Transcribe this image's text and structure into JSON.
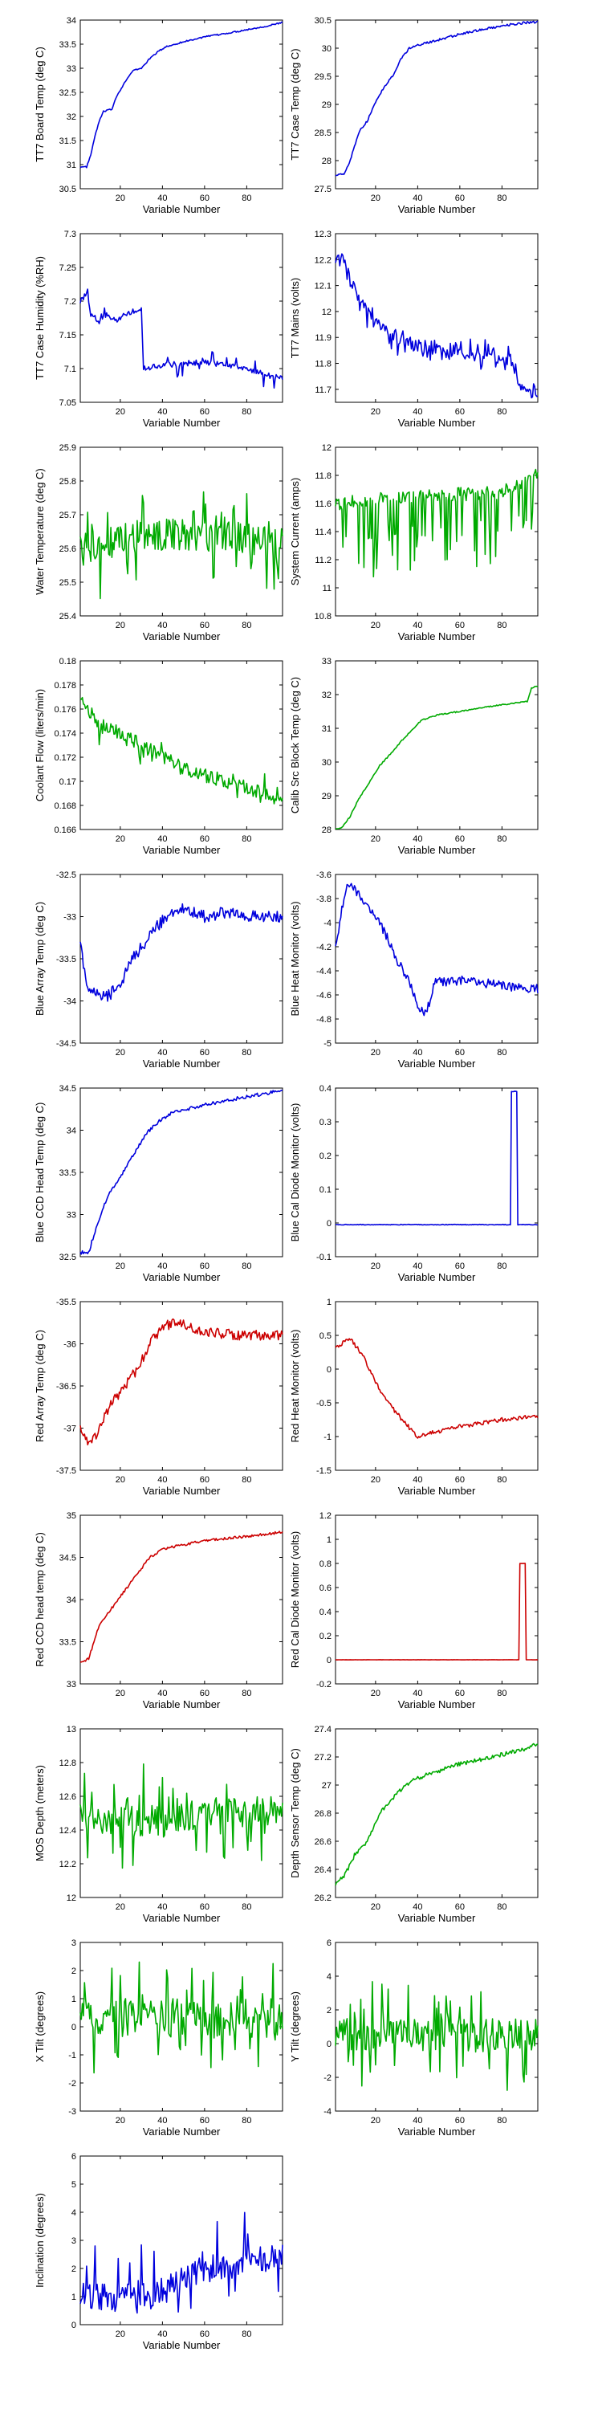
{
  "figure": {
    "xlabel_text": "Variable Number",
    "x_ticks": [
      20,
      40,
      60,
      80
    ]
  },
  "chart_data": [
    {
      "type": "line",
      "ylabel": "TT7 Board Temp (deg C)",
      "color": "#0000dd",
      "xlim": [
        1,
        97
      ],
      "ylim": [
        30.5,
        34
      ],
      "yticks": [
        "30.5",
        "31",
        "31.5",
        "32",
        "32.5",
        "33",
        "33.5",
        "34"
      ],
      "anchors": [
        [
          1,
          30.95
        ],
        [
          4,
          30.95
        ],
        [
          6,
          31.2
        ],
        [
          8,
          31.6
        ],
        [
          10,
          31.9
        ],
        [
          12,
          32.1
        ],
        [
          16,
          32.15
        ],
        [
          18,
          32.4
        ],
        [
          22,
          32.7
        ],
        [
          26,
          32.95
        ],
        [
          30,
          33.0
        ],
        [
          34,
          33.2
        ],
        [
          38,
          33.35
        ],
        [
          42,
          33.45
        ],
        [
          50,
          33.55
        ],
        [
          60,
          33.65
        ],
        [
          70,
          33.72
        ],
        [
          80,
          33.8
        ],
        [
          90,
          33.88
        ],
        [
          97,
          33.95
        ]
      ],
      "noise": 0.015
    },
    {
      "type": "line",
      "ylabel": "TT7 Case Temp (deg C)",
      "color": "#0000dd",
      "xlim": [
        1,
        97
      ],
      "ylim": [
        27.5,
        30.5
      ],
      "yticks": [
        "27.5",
        "28",
        "28.5",
        "29",
        "29.5",
        "30",
        "30.5"
      ],
      "anchors": [
        [
          1,
          27.75
        ],
        [
          5,
          27.75
        ],
        [
          8,
          28.0
        ],
        [
          12,
          28.5
        ],
        [
          16,
          28.7
        ],
        [
          20,
          29.05
        ],
        [
          24,
          29.3
        ],
        [
          28,
          29.5
        ],
        [
          32,
          29.8
        ],
        [
          36,
          30.0
        ],
        [
          40,
          30.05
        ],
        [
          50,
          30.15
        ],
        [
          60,
          30.25
        ],
        [
          70,
          30.33
        ],
        [
          80,
          30.4
        ],
        [
          90,
          30.45
        ],
        [
          97,
          30.47
        ]
      ],
      "noise": 0.02
    },
    {
      "type": "line",
      "ylabel": "TT7 Case Humidity (%RH)",
      "color": "#0000dd",
      "xlim": [
        1,
        97
      ],
      "ylim": [
        7.05,
        7.3
      ],
      "yticks": [
        "7.05",
        "7.1",
        "7.15",
        "7.2",
        "7.25",
        "7.3"
      ],
      "anchors": [
        [
          1,
          7.2
        ],
        [
          4,
          7.21
        ],
        [
          6,
          7.18
        ],
        [
          10,
          7.17
        ],
        [
          14,
          7.18
        ],
        [
          18,
          7.17
        ],
        [
          22,
          7.18
        ],
        [
          30,
          7.19
        ],
        [
          31,
          7.1
        ],
        [
          40,
          7.105
        ],
        [
          60,
          7.11
        ],
        [
          80,
          7.1
        ],
        [
          90,
          7.09
        ],
        [
          97,
          7.085
        ]
      ],
      "noise": 0.004,
      "spikes": 0.12,
      "spike_amp": 0.02
    },
    {
      "type": "line",
      "ylabel": "TT7 Mains  (volts)",
      "color": "#0000dd",
      "xlim": [
        1,
        97
      ],
      "ylim": [
        11.65,
        12.3
      ],
      "yticks": [
        "11.7",
        "11.8",
        "11.9",
        "12",
        "12.1",
        "12.2",
        "12.3"
      ],
      "anchors": [
        [
          1,
          12.2
        ],
        [
          4,
          12.22
        ],
        [
          6,
          12.18
        ],
        [
          8,
          12.12
        ],
        [
          12,
          12.06
        ],
        [
          16,
          12.0
        ],
        [
          20,
          11.96
        ],
        [
          26,
          11.92
        ],
        [
          34,
          11.88
        ],
        [
          44,
          11.86
        ],
        [
          60,
          11.84
        ],
        [
          75,
          11.82
        ],
        [
          85,
          11.81
        ],
        [
          88,
          11.72
        ],
        [
          92,
          11.7
        ],
        [
          97,
          11.68
        ]
      ],
      "noise": 0.02,
      "spikes": 0.25,
      "spike_amp": 0.05
    },
    {
      "type": "line",
      "ylabel": "Water Temperature (deg C)",
      "color": "#00aa00",
      "xlim": [
        1,
        97
      ],
      "ylim": [
        25.4,
        25.9
      ],
      "yticks": [
        "25.4",
        "25.5",
        "25.6",
        "25.7",
        "25.8",
        "25.9"
      ],
      "anchors": [
        [
          1,
          25.6
        ],
        [
          30,
          25.64
        ],
        [
          60,
          25.64
        ],
        [
          97,
          25.62
        ]
      ],
      "noise": 0.05,
      "spikes": 0.2,
      "spike_amp": 0.12
    },
    {
      "type": "line",
      "ylabel": "System Current (amps)",
      "color": "#00aa00",
      "xlim": [
        1,
        97
      ],
      "ylim": [
        10.8,
        12
      ],
      "yticks": [
        "10.8",
        "11",
        "11.2",
        "11.4",
        "11.6",
        "11.8",
        "12"
      ],
      "anchors": [
        [
          1,
          11.6
        ],
        [
          40,
          11.65
        ],
        [
          80,
          11.68
        ],
        [
          97,
          11.8
        ]
      ],
      "noise": 0.05,
      "spikes": 0.28,
      "spike_amp": -0.5
    },
    {
      "type": "line",
      "ylabel": "Coolant Flow (liters/min)",
      "color": "#00aa00",
      "xlim": [
        1,
        97
      ],
      "ylim": [
        0.166,
        0.18
      ],
      "yticks": [
        "0.166",
        "0.168",
        "0.17",
        "0.172",
        "0.174",
        "0.176",
        "0.178",
        "0.18"
      ],
      "anchors": [
        [
          1,
          0.177
        ],
        [
          5,
          0.176
        ],
        [
          10,
          0.1745
        ],
        [
          20,
          0.174
        ],
        [
          30,
          0.173
        ],
        [
          40,
          0.172
        ],
        [
          50,
          0.171
        ],
        [
          60,
          0.1705
        ],
        [
          70,
          0.17
        ],
        [
          80,
          0.1695
        ],
        [
          90,
          0.169
        ],
        [
          97,
          0.168
        ]
      ],
      "noise": 0.0006,
      "spikes": 0.15,
      "spike_amp": 0.0012
    },
    {
      "type": "line",
      "ylabel": "Calib Src Block Temp (deg C)",
      "color": "#00aa00",
      "xlim": [
        1,
        97
      ],
      "ylim": [
        28,
        33
      ],
      "yticks": [
        "28",
        "29",
        "30",
        "31",
        "32",
        "33"
      ],
      "anchors": [
        [
          1,
          28.0
        ],
        [
          4,
          28.05
        ],
        [
          8,
          28.4
        ],
        [
          12,
          28.9
        ],
        [
          16,
          29.3
        ],
        [
          22,
          29.9
        ],
        [
          28,
          30.3
        ],
        [
          32,
          30.6
        ],
        [
          38,
          31.0
        ],
        [
          42,
          31.25
        ],
        [
          50,
          31.4
        ],
        [
          60,
          31.5
        ],
        [
          70,
          31.6
        ],
        [
          80,
          31.7
        ],
        [
          92,
          31.8
        ],
        [
          94,
          32.2
        ],
        [
          97,
          32.25
        ]
      ],
      "noise": 0.02
    },
    {
      "type": "line",
      "ylabel": "Blue Array Temp (deg C)",
      "color": "#0000dd",
      "xlim": [
        1,
        97
      ],
      "ylim": [
        -34.5,
        -32.5
      ],
      "yticks": [
        "-34.5",
        "-34",
        "-33.5",
        "-33",
        "-32.5"
      ],
      "anchors": [
        [
          1,
          -33.3
        ],
        [
          4,
          -33.8
        ],
        [
          8,
          -33.9
        ],
        [
          14,
          -33.95
        ],
        [
          20,
          -33.8
        ],
        [
          26,
          -33.5
        ],
        [
          32,
          -33.3
        ],
        [
          38,
          -33.1
        ],
        [
          44,
          -32.95
        ],
        [
          50,
          -32.9
        ],
        [
          60,
          -33.0
        ],
        [
          70,
          -32.95
        ],
        [
          80,
          -33.0
        ],
        [
          97,
          -33.0
        ]
      ],
      "noise": 0.07
    },
    {
      "type": "line",
      "ylabel": "Blue Heat Monitor (volts)",
      "color": "#0000dd",
      "xlim": [
        1,
        97
      ],
      "ylim": [
        -5,
        -3.6
      ],
      "yticks": [
        "-5",
        "-4.8",
        "-4.6",
        "-4.4",
        "-4.2",
        "-4",
        "-3.8",
        "-3.6"
      ],
      "anchors": [
        [
          1,
          -4.2
        ],
        [
          3,
          -4.0
        ],
        [
          6,
          -3.7
        ],
        [
          10,
          -3.72
        ],
        [
          15,
          -3.85
        ],
        [
          20,
          -3.95
        ],
        [
          25,
          -4.1
        ],
        [
          30,
          -4.3
        ],
        [
          36,
          -4.5
        ],
        [
          40,
          -4.7
        ],
        [
          44,
          -4.75
        ],
        [
          48,
          -4.5
        ],
        [
          60,
          -4.48
        ],
        [
          80,
          -4.52
        ],
        [
          97,
          -4.55
        ]
      ],
      "noise": 0.04
    },
    {
      "type": "line",
      "ylabel": "Blue CCD Head Temp (deg C)",
      "color": "#0000dd",
      "xlim": [
        1,
        97
      ],
      "ylim": [
        32.5,
        34.5
      ],
      "yticks": [
        "32.5",
        "33",
        "33.5",
        "34",
        "34.5"
      ],
      "anchors": [
        [
          1,
          32.55
        ],
        [
          5,
          32.55
        ],
        [
          8,
          32.8
        ],
        [
          12,
          33.1
        ],
        [
          16,
          33.3
        ],
        [
          20,
          33.45
        ],
        [
          26,
          33.7
        ],
        [
          32,
          33.95
        ],
        [
          38,
          34.1
        ],
        [
          44,
          34.2
        ],
        [
          60,
          34.3
        ],
        [
          80,
          34.4
        ],
        [
          97,
          34.47
        ]
      ],
      "noise": 0.02
    },
    {
      "type": "line",
      "ylabel": "Blue Cal Diode Monitor (volts)",
      "color": "#0000dd",
      "xlim": [
        1,
        97
      ],
      "ylim": [
        -0.1,
        0.4
      ],
      "yticks": [
        "-0.1",
        "0",
        "0.1",
        "0.2",
        "0.3",
        "0.4"
      ],
      "anchors": [
        [
          1,
          -0.005
        ],
        [
          84,
          -0.005
        ],
        [
          85,
          0.39
        ],
        [
          87,
          0.39
        ],
        [
          88,
          -0.005
        ],
        [
          97,
          -0.005
        ]
      ],
      "noise": 0.001,
      "step": true
    },
    {
      "type": "line",
      "ylabel": "Red Array Temp (deg C)",
      "color": "#cc0000",
      "xlim": [
        1,
        97
      ],
      "ylim": [
        -37.5,
        -35.5
      ],
      "yticks": [
        "-37.5",
        "-37",
        "-36.5",
        "-36",
        "-35.5"
      ],
      "anchors": [
        [
          1,
          -37.0
        ],
        [
          6,
          -37.2
        ],
        [
          10,
          -37.0
        ],
        [
          16,
          -36.7
        ],
        [
          22,
          -36.5
        ],
        [
          28,
          -36.3
        ],
        [
          34,
          -36.0
        ],
        [
          40,
          -35.8
        ],
        [
          46,
          -35.75
        ],
        [
          60,
          -35.85
        ],
        [
          75,
          -35.9
        ],
        [
          97,
          -35.9
        ]
      ],
      "noise": 0.06
    },
    {
      "type": "line",
      "ylabel": "Red Heat Monitor (volts)",
      "color": "#cc0000",
      "xlim": [
        1,
        97
      ],
      "ylim": [
        -1.5,
        1
      ],
      "yticks": [
        "-1.5",
        "-1",
        "-0.5",
        "0",
        "0.5",
        "1"
      ],
      "anchors": [
        [
          1,
          0.3
        ],
        [
          5,
          0.4
        ],
        [
          8,
          0.45
        ],
        [
          14,
          0.2
        ],
        [
          20,
          -0.2
        ],
        [
          26,
          -0.5
        ],
        [
          34,
          -0.8
        ],
        [
          40,
          -1.0
        ],
        [
          46,
          -0.95
        ],
        [
          60,
          -0.85
        ],
        [
          80,
          -0.75
        ],
        [
          97,
          -0.7
        ]
      ],
      "noise": 0.03
    },
    {
      "type": "line",
      "ylabel": "Red CCD head temp (deg C)",
      "color": "#cc0000",
      "xlim": [
        1,
        97
      ],
      "ylim": [
        33,
        35
      ],
      "yticks": [
        "33",
        "33.5",
        "34",
        "34.5",
        "35"
      ],
      "anchors": [
        [
          1,
          33.25
        ],
        [
          5,
          33.3
        ],
        [
          10,
          33.7
        ],
        [
          16,
          33.9
        ],
        [
          22,
          34.1
        ],
        [
          28,
          34.3
        ],
        [
          34,
          34.5
        ],
        [
          40,
          34.6
        ],
        [
          50,
          34.65
        ],
        [
          60,
          34.7
        ],
        [
          80,
          34.75
        ],
        [
          97,
          34.8
        ]
      ],
      "noise": 0.015
    },
    {
      "type": "line",
      "ylabel": "Red Cal Diode Monitor (volts)",
      "color": "#cc0000",
      "xlim": [
        1,
        97
      ],
      "ylim": [
        -0.2,
        1.2
      ],
      "yticks": [
        "-0.2",
        "0",
        "0.2",
        "0.4",
        "0.6",
        "0.8",
        "1",
        "1.2"
      ],
      "anchors": [
        [
          1,
          0.0
        ],
        [
          88,
          0.0
        ],
        [
          89,
          0.8
        ],
        [
          91,
          0.8
        ],
        [
          92,
          0.0
        ],
        [
          97,
          0.0
        ]
      ],
      "noise": 0.001,
      "step": true
    },
    {
      "type": "line",
      "ylabel": "MOS Depth  (meters)",
      "color": "#00aa00",
      "xlim": [
        1,
        97
      ],
      "ylim": [
        12,
        13
      ],
      "yticks": [
        "12",
        "12.2",
        "12.4",
        "12.6",
        "12.8",
        "13"
      ],
      "anchors": [
        [
          1,
          12.45
        ],
        [
          40,
          12.45
        ],
        [
          70,
          12.5
        ],
        [
          97,
          12.5
        ]
      ],
      "noise": 0.1,
      "spikes": 0.18,
      "spike_amp": 0.25
    },
    {
      "type": "line",
      "ylabel": "Depth Sensor Temp (deg C)",
      "color": "#00aa00",
      "xlim": [
        1,
        97
      ],
      "ylim": [
        26.2,
        27.4
      ],
      "yticks": [
        "26.2",
        "26.4",
        "26.6",
        "26.8",
        "27",
        "27.2",
        "27.4"
      ],
      "anchors": [
        [
          1,
          26.3
        ],
        [
          5,
          26.35
        ],
        [
          10,
          26.5
        ],
        [
          16,
          26.6
        ],
        [
          22,
          26.8
        ],
        [
          28,
          26.9
        ],
        [
          34,
          27.0
        ],
        [
          40,
          27.05
        ],
        [
          50,
          27.1
        ],
        [
          60,
          27.15
        ],
        [
          75,
          27.2
        ],
        [
          90,
          27.25
        ],
        [
          97,
          27.3
        ]
      ],
      "noise": 0.015
    },
    {
      "type": "line",
      "ylabel": "X Tilt  (degrees)",
      "color": "#00aa00",
      "xlim": [
        1,
        97
      ],
      "ylim": [
        -3,
        3
      ],
      "yticks": [
        "-3",
        "-2",
        "-1",
        "0",
        "1",
        "2",
        "3"
      ],
      "anchors": [
        [
          1,
          0.3
        ],
        [
          50,
          0.3
        ],
        [
          97,
          0.3
        ]
      ],
      "noise": 0.7,
      "spikes": 0.2,
      "spike_amp": 1.6
    },
    {
      "type": "line",
      "ylabel": "Y Tilt  (degrees)",
      "color": "#00aa00",
      "xlim": [
        1,
        97
      ],
      "ylim": [
        -4,
        6
      ],
      "yticks": [
        "-4",
        "-2",
        "0",
        "2",
        "4",
        "6"
      ],
      "anchors": [
        [
          1,
          0.5
        ],
        [
          50,
          0.5
        ],
        [
          97,
          0.5
        ]
      ],
      "noise": 1.0,
      "spikes": 0.2,
      "spike_amp": 2.5
    },
    {
      "type": "line",
      "ylabel": "Inclination  (degrees)",
      "color": "#0000dd",
      "xlim": [
        1,
        97
      ],
      "ylim": [
        0,
        6
      ],
      "yticks": [
        "0",
        "1",
        "2",
        "3",
        "4",
        "5",
        "6"
      ],
      "anchors": [
        [
          1,
          1.0
        ],
        [
          20,
          1.0
        ],
        [
          40,
          1.2
        ],
        [
          60,
          2.0
        ],
        [
          80,
          2.2
        ],
        [
          97,
          2.4
        ]
      ],
      "noise": 0.5,
      "spikes": 0.15,
      "spike_amp": 1.6,
      "floor": 0.4
    }
  ]
}
